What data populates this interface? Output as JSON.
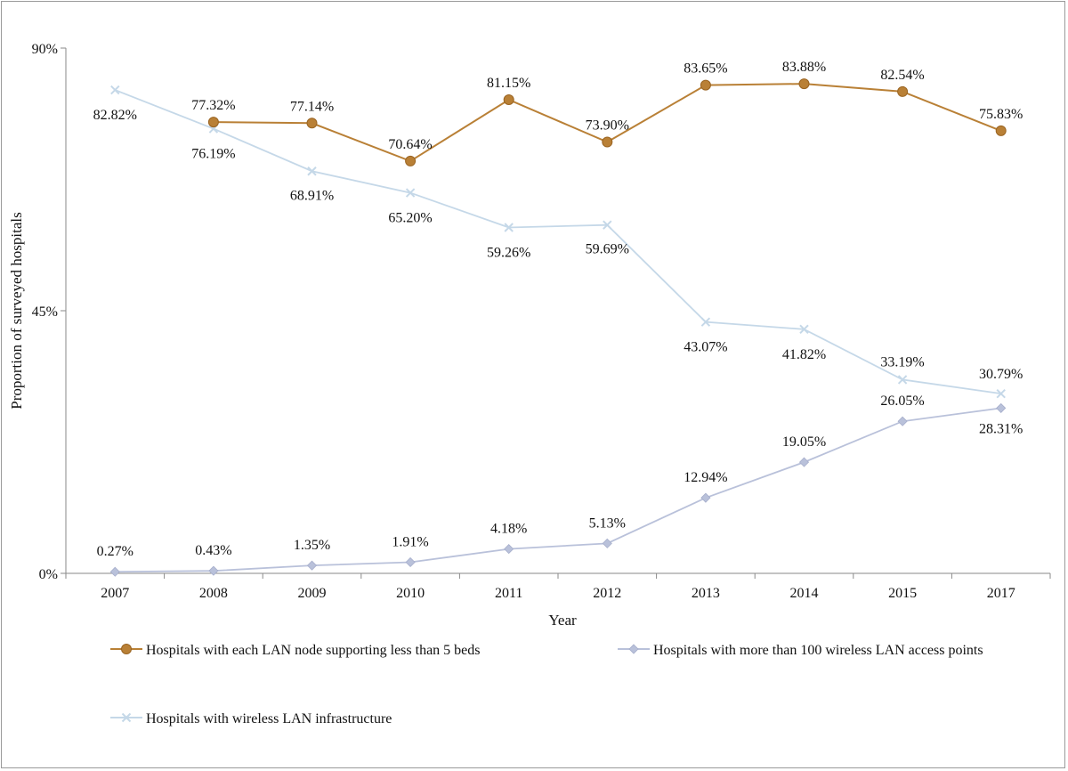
{
  "chart_data": {
    "type": "line",
    "title": "",
    "xlabel": "Year",
    "ylabel": "Proportion of surveyed hospitals",
    "categories": [
      "2007",
      "2008",
      "2009",
      "2010",
      "2011",
      "2012",
      "2013",
      "2014",
      "2015",
      "2017"
    ],
    "ylim": [
      0,
      90
    ],
    "yticks": [
      0,
      45,
      90
    ],
    "ytick_labels": [
      "0%",
      "45%",
      "90%"
    ],
    "grid": false,
    "legend_position": "bottom",
    "series": [
      {
        "name": "Hospitals with each LAN node supporting less than 5 beds",
        "marker": "circle",
        "color": "#b98036",
        "values": [
          null,
          77.32,
          77.14,
          70.64,
          81.15,
          73.9,
          83.65,
          83.88,
          82.54,
          75.83
        ],
        "labels": [
          "",
          "77.32%",
          "77.14%",
          "70.64%",
          "81.15%",
          "73.90%",
          "83.65%",
          "83.88%",
          "82.54%",
          "75.83%"
        ]
      },
      {
        "name": "Hospitals with more than 100 wireless LAN access points",
        "marker": "diamond",
        "color": "#b9c1da",
        "values": [
          0.27,
          0.43,
          1.35,
          1.91,
          4.18,
          5.13,
          12.94,
          19.05,
          26.05,
          28.31
        ],
        "labels": [
          "0.27%",
          "0.43%",
          "1.35%",
          "1.91%",
          "4.18%",
          "5.13%",
          "12.94%",
          "19.05%",
          "26.05%",
          "28.31%"
        ]
      },
      {
        "name": "Hospitals with wireless LAN infrastructure",
        "marker": "x",
        "color": "#c5d8e8",
        "values": [
          82.82,
          76.19,
          68.91,
          65.2,
          59.26,
          59.69,
          43.07,
          41.82,
          33.19,
          30.79
        ],
        "labels": [
          "82.82%",
          "76.19%",
          "68.91%",
          "65.20%",
          "59.26%",
          "59.69%",
          "43.07%",
          "41.82%",
          "33.19%",
          "30.79%"
        ]
      }
    ]
  }
}
